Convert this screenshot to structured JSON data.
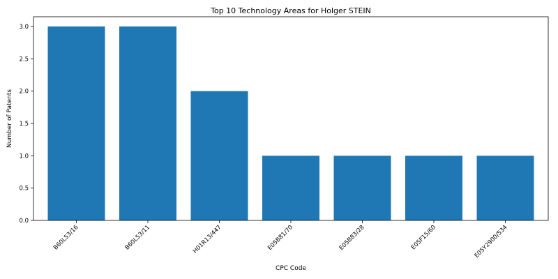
{
  "chart_data": {
    "type": "bar",
    "title": "Top 10 Technology Areas for Holger STEIN",
    "xlabel": "CPC Code",
    "ylabel": "Number of Patents",
    "categories": [
      "B60L53/16",
      "B60L53/11",
      "H01R13/447",
      "E05B81/70",
      "E05B83/28",
      "E05F15/60",
      "E05Y2900/534"
    ],
    "values": [
      3,
      3,
      2,
      1,
      1,
      1,
      1
    ],
    "ylim": [
      0,
      3.15
    ],
    "yticks": [
      0.0,
      0.5,
      1.0,
      1.5,
      2.0,
      2.5,
      3.0
    ],
    "bar_color": "#1f77b4",
    "grid": false
  }
}
